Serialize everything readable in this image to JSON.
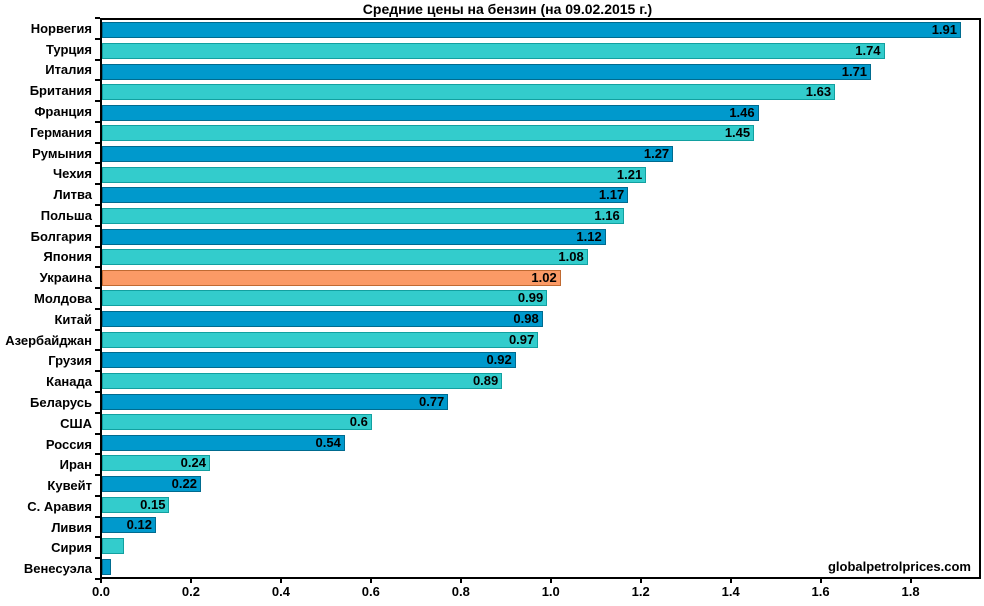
{
  "title": "Средние цены на бензин (на 09.02.2015 г.)",
  "watermark": "globalpetrolprices.com",
  "colors": {
    "background": "#FFFFFF",
    "text": "#000000",
    "bar_dark": "#0099CC",
    "bar_dark_border": "#006B8F",
    "bar_teal": "#33CCCC",
    "bar_teal_border": "#12A0A0",
    "bar_highlight": "#FB9A66",
    "bar_highlight_border": "#C06A32",
    "axis": "#000000"
  },
  "chart_data": {
    "type": "bar",
    "orientation": "horizontal",
    "title": "Средние цены на бензин (на 09.02.2015 г.)",
    "grid": false,
    "xlim": [
      0,
      1.95
    ],
    "x_ticks": [
      0.0,
      0.2,
      0.4,
      0.6,
      0.8,
      1.0,
      1.2,
      1.4,
      1.6,
      1.8
    ],
    "x_tick_labels": [
      "0.0",
      "0.2",
      "0.4",
      "0.6",
      "0.8",
      "1.0",
      "1.2",
      "1.4",
      "1.6",
      "1.8"
    ],
    "highlight_category": "Украина",
    "rows": [
      {
        "category": "Норвегия",
        "value": 1.91,
        "label": "1.91",
        "color": "dark"
      },
      {
        "category": "Турция",
        "value": 1.74,
        "label": "1.74",
        "color": "teal"
      },
      {
        "category": "Италия",
        "value": 1.71,
        "label": "1.71",
        "color": "dark"
      },
      {
        "category": "Британия",
        "value": 1.63,
        "label": "1.63",
        "color": "teal"
      },
      {
        "category": "Франция",
        "value": 1.46,
        "label": "1.46",
        "color": "dark"
      },
      {
        "category": "Германия",
        "value": 1.45,
        "label": "1.45",
        "color": "teal"
      },
      {
        "category": "Румыния",
        "value": 1.27,
        "label": "1.27",
        "color": "dark"
      },
      {
        "category": "Чехия",
        "value": 1.21,
        "label": "1.21",
        "color": "teal"
      },
      {
        "category": "Литва",
        "value": 1.17,
        "label": "1.17",
        "color": "dark"
      },
      {
        "category": "Польша",
        "value": 1.16,
        "label": "1.16",
        "color": "teal"
      },
      {
        "category": "Болгария",
        "value": 1.12,
        "label": "1.12",
        "color": "dark"
      },
      {
        "category": "Япония",
        "value": 1.08,
        "label": "1.08",
        "color": "teal"
      },
      {
        "category": "Украина",
        "value": 1.02,
        "label": "1.02",
        "color": "highlight"
      },
      {
        "category": "Молдова",
        "value": 0.99,
        "label": "0.99",
        "color": "teal"
      },
      {
        "category": "Китай",
        "value": 0.98,
        "label": "0.98",
        "color": "dark"
      },
      {
        "category": "Азербайджан",
        "value": 0.97,
        "label": "0.97",
        "color": "teal"
      },
      {
        "category": "Грузия",
        "value": 0.92,
        "label": "0.92",
        "color": "dark"
      },
      {
        "category": "Канада",
        "value": 0.89,
        "label": "0.89",
        "color": "teal"
      },
      {
        "category": "Беларусь",
        "value": 0.77,
        "label": "0.77",
        "color": "dark"
      },
      {
        "category": "США",
        "value": 0.6,
        "label": "0.6",
        "color": "teal"
      },
      {
        "category": "Россия",
        "value": 0.54,
        "label": "0.54",
        "color": "dark"
      },
      {
        "category": "Иран",
        "value": 0.24,
        "label": "0.24",
        "color": "teal"
      },
      {
        "category": "Кувейт",
        "value": 0.22,
        "label": "0.22",
        "color": "dark"
      },
      {
        "category": "С. Аравия",
        "value": 0.15,
        "label": "0.15",
        "color": "teal"
      },
      {
        "category": "Ливия",
        "value": 0.12,
        "label": "0.12",
        "color": "dark"
      },
      {
        "category": "Сирия",
        "value": 0.05,
        "label": "",
        "color": "teal"
      },
      {
        "category": "Венесуэла",
        "value": 0.02,
        "label": "",
        "color": "dark"
      }
    ]
  }
}
